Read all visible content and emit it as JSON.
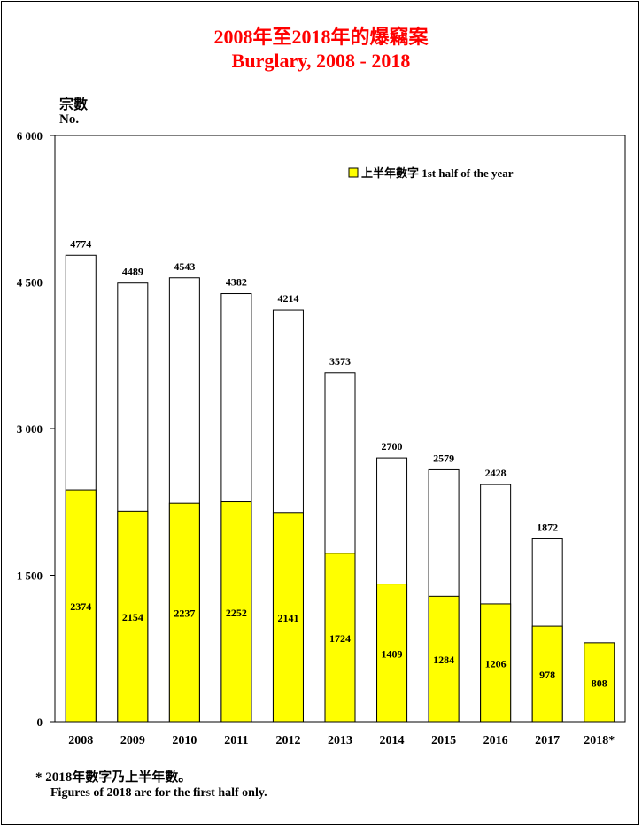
{
  "title_zh": "2008年至2018年的爆竊案",
  "title_en": "Burglary, 2008 - 2018",
  "ylabel_zh": "宗數",
  "ylabel_en": "No.",
  "legend_label": "上半年數字 1st half of the year",
  "footnote_zh": "* 2018年數字乃上半年數。",
  "footnote_en": "Figures of 2018 are for the first half only.",
  "colors": {
    "half_year": "#ffff00",
    "full_year": "#ffffff",
    "title": "#ff0000"
  },
  "chart_data": {
    "type": "bar",
    "categories": [
      "2008",
      "2009",
      "2010",
      "2011",
      "2012",
      "2013",
      "2014",
      "2015",
      "2016",
      "2017",
      "2018*"
    ],
    "series": [
      {
        "name": "上半年數字 1st half of the year",
        "values": [
          2374,
          2154,
          2237,
          2252,
          2141,
          1724,
          1409,
          1284,
          1206,
          978,
          808
        ]
      },
      {
        "values": [
          4774,
          4489,
          4543,
          4382,
          4214,
          3573,
          2700,
          2579,
          2428,
          1872,
          null
        ]
      }
    ],
    "yticks": [
      "0",
      "1 500",
      "3 000",
      "4 500",
      "6 000"
    ],
    "ylim": [
      0,
      6000
    ],
    "grid": false,
    "legend_position": "top-right"
  }
}
